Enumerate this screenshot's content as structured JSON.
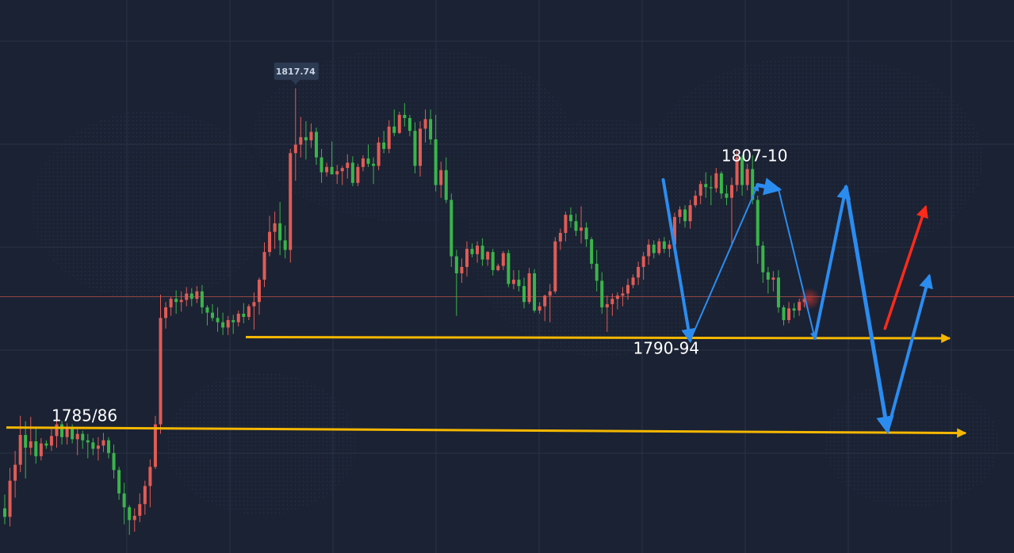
{
  "chart_data": {
    "type": "candlestick",
    "title": "",
    "xlabel": "",
    "ylabel": "",
    "ylim": [
      1774,
      1826
    ],
    "grid": true,
    "high_marker": {
      "index": 56,
      "value": 1817.74,
      "label": "1817.74"
    },
    "colors": {
      "background": "#1b2233",
      "grid": "#2a3347",
      "up": "#e05c55",
      "down": "#39b54a",
      "support": "#f5b700",
      "projection": "#2b8cf0",
      "bullish_target": "#ff2a1a",
      "current_price_line": "#c9564a"
    },
    "candles": [
      [
        1778.2,
        1779.5,
        1776.7,
        1777.4
      ],
      [
        1777.4,
        1782.0,
        1776.5,
        1780.8
      ],
      [
        1780.8,
        1783.6,
        1779.2,
        1782.3
      ],
      [
        1782.3,
        1786.9,
        1781.6,
        1785.1
      ],
      [
        1785.1,
        1786.4,
        1781.0,
        1783.9
      ],
      [
        1783.9,
        1786.8,
        1783.2,
        1784.5
      ],
      [
        1784.5,
        1785.9,
        1782.4,
        1783.1
      ],
      [
        1783.1,
        1784.8,
        1782.7,
        1784.3
      ],
      [
        1784.3,
        1784.6,
        1783.8,
        1784.1
      ],
      [
        1784.1,
        1785.7,
        1783.6,
        1785.0
      ],
      [
        1785.0,
        1786.9,
        1783.9,
        1786.1
      ],
      [
        1786.1,
        1786.4,
        1784.2,
        1784.9
      ],
      [
        1784.9,
        1786.2,
        1784.2,
        1785.8
      ],
      [
        1785.8,
        1786.1,
        1784.3,
        1784.7
      ],
      [
        1784.7,
        1785.8,
        1783.2,
        1785.2
      ],
      [
        1785.2,
        1785.5,
        1783.8,
        1784.6
      ],
      [
        1784.6,
        1785.2,
        1782.9,
        1784.4
      ],
      [
        1784.4,
        1784.8,
        1783.2,
        1783.8
      ],
      [
        1783.8,
        1784.9,
        1782.7,
        1784.1
      ],
      [
        1784.1,
        1785.3,
        1783.5,
        1784.6
      ],
      [
        1784.6,
        1784.9,
        1782.9,
        1783.4
      ],
      [
        1783.4,
        1784.2,
        1781.0,
        1781.8
      ],
      [
        1781.8,
        1782.1,
        1779.0,
        1779.6
      ],
      [
        1779.6,
        1780.6,
        1776.7,
        1778.3
      ],
      [
        1778.3,
        1778.5,
        1775.7,
        1777.1
      ],
      [
        1777.1,
        1778.2,
        1776.0,
        1777.5
      ],
      [
        1777.5,
        1779.6,
        1776.9,
        1778.6
      ],
      [
        1778.6,
        1780.8,
        1777.6,
        1780.3
      ],
      [
        1780.3,
        1782.8,
        1778.3,
        1782.1
      ],
      [
        1782.1,
        1786.9,
        1781.9,
        1786.1
      ],
      [
        1786.1,
        1798.3,
        1785.2,
        1796.1
      ],
      [
        1796.1,
        1797.6,
        1795.1,
        1797.1
      ],
      [
        1797.1,
        1798.1,
        1796.3,
        1797.9
      ],
      [
        1797.9,
        1798.7,
        1796.5,
        1797.6
      ],
      [
        1797.6,
        1798.6,
        1796.7,
        1797.8
      ],
      [
        1797.8,
        1799.0,
        1797.2,
        1798.4
      ],
      [
        1798.4,
        1798.9,
        1797.2,
        1797.9
      ],
      [
        1797.9,
        1799.1,
        1797.5,
        1798.6
      ],
      [
        1798.6,
        1799.2,
        1796.5,
        1797.1
      ],
      [
        1797.1,
        1797.3,
        1795.4,
        1796.6
      ],
      [
        1796.6,
        1797.4,
        1795.8,
        1796.1
      ],
      [
        1796.1,
        1797.1,
        1794.8,
        1795.7
      ],
      [
        1795.7,
        1796.6,
        1794.5,
        1795.2
      ],
      [
        1795.2,
        1796.3,
        1794.5,
        1795.9
      ],
      [
        1795.9,
        1796.4,
        1794.6,
        1795.7
      ],
      [
        1795.7,
        1796.8,
        1795.3,
        1796.5
      ],
      [
        1796.5,
        1797.5,
        1795.6,
        1796.2
      ],
      [
        1796.2,
        1797.4,
        1795.9,
        1797.2
      ],
      [
        1797.2,
        1798.5,
        1795.0,
        1797.6
      ],
      [
        1797.6,
        1799.9,
        1796.4,
        1799.7
      ],
      [
        1799.7,
        1803.2,
        1799.0,
        1802.3
      ],
      [
        1802.3,
        1805.7,
        1801.9,
        1804.2
      ],
      [
        1804.2,
        1806.1,
        1802.6,
        1805.0
      ],
      [
        1805.0,
        1807.0,
        1802.0,
        1803.4
      ],
      [
        1803.4,
        1804.8,
        1801.7,
        1802.5
      ],
      [
        1802.5,
        1812.0,
        1801.3,
        1811.6
      ],
      [
        1811.6,
        1817.7,
        1809.0,
        1812.4
      ],
      [
        1812.4,
        1815.0,
        1811.2,
        1813.1
      ],
      [
        1813.1,
        1814.6,
        1811.0,
        1812.8
      ],
      [
        1812.8,
        1814.4,
        1812.1,
        1813.6
      ],
      [
        1813.6,
        1814.0,
        1810.5,
        1811.2
      ],
      [
        1811.2,
        1812.0,
        1808.8,
        1809.8
      ],
      [
        1809.8,
        1810.7,
        1809.4,
        1810.3
      ],
      [
        1810.3,
        1812.7,
        1810.0,
        1809.6
      ],
      [
        1809.6,
        1810.5,
        1808.7,
        1809.9
      ],
      [
        1809.9,
        1810.4,
        1808.6,
        1810.2
      ],
      [
        1810.2,
        1811.5,
        1809.2,
        1810.7
      ],
      [
        1810.7,
        1811.3,
        1808.5,
        1808.8
      ],
      [
        1808.8,
        1810.6,
        1808.5,
        1810.3
      ],
      [
        1810.3,
        1811.4,
        1809.9,
        1811.1
      ],
      [
        1811.1,
        1812.4,
        1810.3,
        1810.6
      ],
      [
        1810.6,
        1811.2,
        1808.7,
        1810.4
      ],
      [
        1810.4,
        1813.1,
        1810.0,
        1812.6
      ],
      [
        1812.6,
        1813.7,
        1811.6,
        1812.0
      ],
      [
        1812.0,
        1814.7,
        1811.6,
        1814.1
      ],
      [
        1814.1,
        1815.7,
        1813.2,
        1813.5
      ],
      [
        1813.5,
        1815.5,
        1813.4,
        1815.2
      ],
      [
        1815.2,
        1816.3,
        1814.1,
        1814.9
      ],
      [
        1814.9,
        1815.2,
        1813.2,
        1813.7
      ],
      [
        1813.7,
        1814.5,
        1809.7,
        1810.4
      ],
      [
        1810.4,
        1814.6,
        1809.4,
        1813.9
      ],
      [
        1813.9,
        1815.7,
        1812.6,
        1814.8
      ],
      [
        1814.8,
        1815.7,
        1812.4,
        1812.9
      ],
      [
        1812.9,
        1815.2,
        1808.0,
        1808.6
      ],
      [
        1808.6,
        1810.8,
        1807.4,
        1810.0
      ],
      [
        1810.0,
        1811.2,
        1806.9,
        1807.2
      ],
      [
        1807.2,
        1807.8,
        1800.9,
        1801.9
      ],
      [
        1801.9,
        1802.5,
        1796.3,
        1800.3
      ],
      [
        1800.3,
        1801.7,
        1799.4,
        1800.9
      ],
      [
        1800.9,
        1803.3,
        1800.0,
        1802.6
      ],
      [
        1802.6,
        1803.1,
        1801.8,
        1802.1
      ],
      [
        1802.1,
        1803.3,
        1801.3,
        1802.9
      ],
      [
        1802.9,
        1803.6,
        1801.0,
        1801.6
      ],
      [
        1801.6,
        1802.4,
        1801.0,
        1802.3
      ],
      [
        1802.3,
        1802.6,
        1800.1,
        1800.6
      ],
      [
        1800.6,
        1801.2,
        1800.5,
        1801.0
      ],
      [
        1801.0,
        1802.4,
        1800.6,
        1802.2
      ],
      [
        1802.2,
        1802.5,
        1799.0,
        1799.3
      ],
      [
        1799.3,
        1800.6,
        1798.8,
        1799.7
      ],
      [
        1799.7,
        1800.6,
        1798.6,
        1799.1
      ],
      [
        1799.1,
        1799.9,
        1797.0,
        1797.6
      ],
      [
        1797.6,
        1800.8,
        1797.4,
        1800.3
      ],
      [
        1800.3,
        1800.7,
        1796.6,
        1796.8
      ],
      [
        1796.8,
        1797.6,
        1796.5,
        1797.2
      ],
      [
        1797.2,
        1798.3,
        1795.8,
        1798.2
      ],
      [
        1798.2,
        1799.3,
        1795.7,
        1798.6
      ],
      [
        1798.6,
        1803.7,
        1798.4,
        1803.3
      ],
      [
        1803.3,
        1804.5,
        1802.5,
        1804.1
      ],
      [
        1804.1,
        1806.1,
        1803.3,
        1805.8
      ],
      [
        1805.8,
        1806.5,
        1804.6,
        1805.2
      ],
      [
        1805.2,
        1805.9,
        1803.8,
        1804.3
      ],
      [
        1804.3,
        1806.6,
        1803.1,
        1804.6
      ],
      [
        1804.6,
        1805.1,
        1802.8,
        1803.5
      ],
      [
        1803.5,
        1803.7,
        1800.7,
        1801.2
      ],
      [
        1801.2,
        1802.5,
        1798.6,
        1799.6
      ],
      [
        1799.6,
        1800.4,
        1796.5,
        1797.1
      ],
      [
        1797.1,
        1798.2,
        1794.8,
        1797.4
      ],
      [
        1797.4,
        1798.4,
        1796.3,
        1797.9
      ],
      [
        1797.9,
        1798.5,
        1796.9,
        1798.2
      ],
      [
        1798.2,
        1799.0,
        1797.2,
        1798.4
      ],
      [
        1798.4,
        1799.8,
        1797.8,
        1799.2
      ],
      [
        1799.2,
        1800.2,
        1798.9,
        1799.9
      ],
      [
        1799.9,
        1801.4,
        1799.2,
        1800.9
      ],
      [
        1800.9,
        1802.3,
        1799.7,
        1801.9
      ],
      [
        1801.9,
        1803.5,
        1801.1,
        1803.0
      ],
      [
        1803.0,
        1803.4,
        1801.7,
        1802.2
      ],
      [
        1802.2,
        1803.6,
        1802.0,
        1803.3
      ],
      [
        1803.3,
        1803.7,
        1802.2,
        1802.6
      ],
      [
        1802.6,
        1803.4,
        1801.8,
        1803.0
      ],
      [
        1803.0,
        1806.0,
        1802.6,
        1805.6
      ],
      [
        1805.6,
        1806.6,
        1805.0,
        1806.3
      ],
      [
        1806.3,
        1806.7,
        1804.6,
        1805.2
      ],
      [
        1805.2,
        1807.2,
        1804.5,
        1806.7
      ],
      [
        1806.7,
        1808.1,
        1806.5,
        1807.6
      ],
      [
        1807.6,
        1809.0,
        1806.8,
        1808.7
      ],
      [
        1808.7,
        1809.8,
        1807.4,
        1808.4
      ],
      [
        1808.4,
        1809.5,
        1806.7,
        1808.3
      ],
      [
        1808.3,
        1810.2,
        1807.9,
        1809.7
      ],
      [
        1809.7,
        1809.9,
        1807.3,
        1807.8
      ],
      [
        1807.8,
        1808.6,
        1806.7,
        1807.4
      ],
      [
        1807.4,
        1809.3,
        1802.8,
        1808.6
      ],
      [
        1808.6,
        1811.8,
        1808.0,
        1811.2
      ],
      [
        1811.2,
        1811.4,
        1807.6,
        1808.6
      ],
      [
        1808.6,
        1810.6,
        1808.1,
        1810.1
      ],
      [
        1810.1,
        1811.4,
        1806.8,
        1807.2
      ],
      [
        1807.2,
        1807.6,
        1801.2,
        1802.9
      ],
      [
        1802.9,
        1803.3,
        1799.4,
        1800.4
      ],
      [
        1800.4,
        1800.9,
        1798.4,
        1799.7
      ],
      [
        1799.7,
        1800.5,
        1798.6,
        1799.9
      ],
      [
        1799.9,
        1800.6,
        1796.6,
        1797.1
      ],
      [
        1797.1,
        1797.3,
        1795.4,
        1795.9
      ],
      [
        1795.9,
        1797.6,
        1795.6,
        1797.0
      ],
      [
        1797.0,
        1797.5,
        1796.1,
        1796.8
      ],
      [
        1796.8,
        1797.9,
        1796.3,
        1797.6
      ],
      [
        1797.6,
        1798.2,
        1797.1,
        1797.9
      ]
    ],
    "support_levels": [
      {
        "value": 1794.3,
        "label": "1790-94"
      },
      {
        "value": 1785.8,
        "label": "1785/86"
      }
    ],
    "resistance_label": {
      "value": 1810.4,
      "label": "1807-10"
    },
    "projection_path": [
      {
        "i": 126.8,
        "v": 1809.1
      },
      {
        "i": 132.0,
        "v": 1794.0
      },
      {
        "i": 145.0,
        "v": 1808.6
      },
      {
        "i": 149.0,
        "v": 1808.2
      },
      {
        "i": 156.0,
        "v": 1794.2
      },
      {
        "i": 162.0,
        "v": 1808.4
      },
      {
        "i": 170.0,
        "v": 1785.5
      },
      {
        "i": 178.0,
        "v": 1800.0
      }
    ],
    "bullish_arrow": [
      {
        "i": 169.5,
        "v": 1795.1
      },
      {
        "i": 177.3,
        "v": 1806.5
      }
    ],
    "current_price": 1798.1
  }
}
